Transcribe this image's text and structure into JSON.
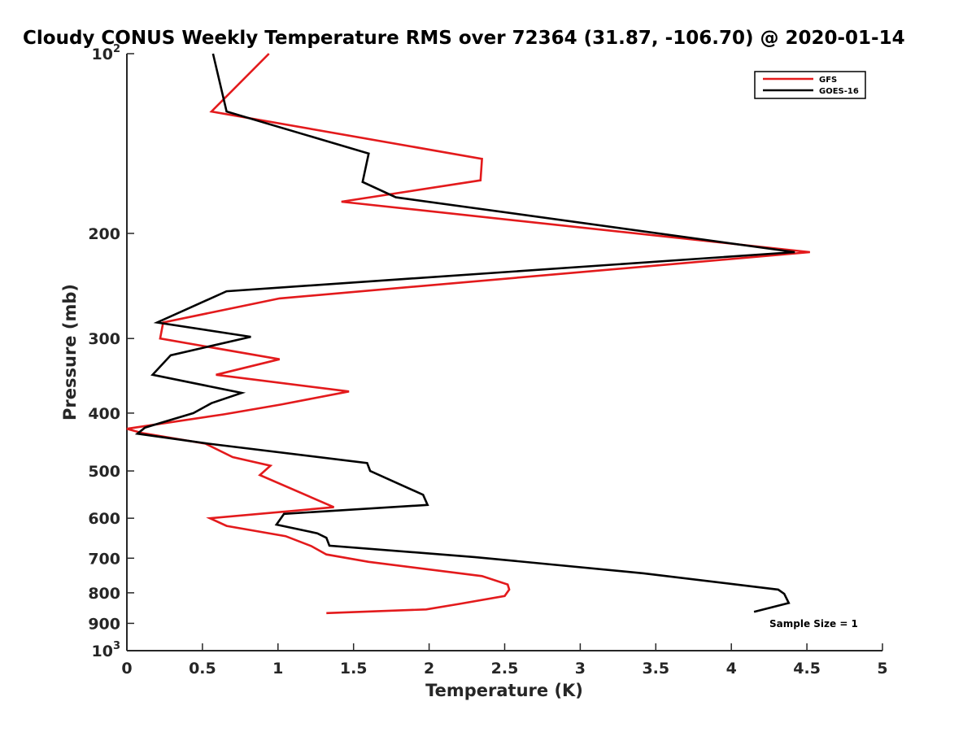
{
  "chart_data": {
    "type": "line",
    "title": "Cloudy CONUS Weekly Temperature RMS over 72364 (31.87, -106.70) @ 2020-01-14",
    "xlabel": "Temperature (K)",
    "ylabel": "Pressure (mb)",
    "xlim": [
      0,
      5
    ],
    "ylim": [
      100,
      1000
    ],
    "y_scale": "log",
    "y_reversed": true,
    "x_ticks": [
      0,
      0.5,
      1,
      1.5,
      2,
      2.5,
      3,
      3.5,
      4,
      4.5,
      5
    ],
    "x_tick_labels": [
      "0",
      "0.5",
      "1",
      "1.5",
      "2",
      "2.5",
      "3",
      "3.5",
      "4",
      "4.5",
      "5"
    ],
    "y_ticks": [
      {
        "value": 100,
        "base": "10",
        "exp": "2"
      },
      {
        "value": 200,
        "label": "200"
      },
      {
        "value": 300,
        "label": "300"
      },
      {
        "value": 400,
        "label": "400"
      },
      {
        "value": 500,
        "label": "500"
      },
      {
        "value": 600,
        "label": "600"
      },
      {
        "value": 700,
        "label": "700"
      },
      {
        "value": 800,
        "label": "800"
      },
      {
        "value": 900,
        "label": "900"
      },
      {
        "value": 1000,
        "base": "10",
        "exp": "3"
      }
    ],
    "grid": false,
    "legend_position": "top-right",
    "annotation": "Sample Size = 1",
    "series": [
      {
        "name": "GFS",
        "color": "#e31a1c",
        "x": [
          0.94,
          0.56,
          2.35,
          2.34,
          1.42,
          4.52,
          1.01,
          0.24,
          0.22,
          1.01,
          0.59,
          1.47,
          1.02,
          0.64,
          0,
          0.1,
          0.52,
          0.7,
          0.95,
          0.88,
          1.37,
          0.55,
          0.66,
          1.05,
          1.22,
          1.32,
          1.6,
          2.35,
          2.52,
          2.53,
          2.5,
          2.2,
          1.98,
          1.32
        ],
        "y": [
          100,
          125,
          150,
          163,
          177,
          215,
          257,
          282,
          300,
          325,
          345,
          368,
          387,
          402,
          425,
          432,
          450,
          474,
          490,
          508,
          575,
          600,
          618,
          643,
          668,
          690,
          710,
          750,
          775,
          790,
          810,
          835,
          853,
          865
        ]
      },
      {
        "name": "GOES-16",
        "color": "#000000",
        "x": [
          0.57,
          0.66,
          1.6,
          1.56,
          1.78,
          4.42,
          0.66,
          0.2,
          0.82,
          0.29,
          0.17,
          0.76,
          0.56,
          0.44,
          0.12,
          0.07,
          0.54,
          1.59,
          1.61,
          1.81,
          1.96,
          1.99,
          1.04,
          0.99,
          1.26,
          1.32,
          1.34,
          2.3,
          3.42,
          4.31,
          4.35,
          4.38,
          4.15
        ],
        "y": [
          100,
          125,
          147,
          164,
          174,
          215,
          250,
          282,
          298,
          320,
          345,
          370,
          385,
          400,
          423,
          433,
          450,
          485,
          500,
          527,
          548,
          570,
          590,
          615,
          636,
          647,
          667,
          697,
          742,
          790,
          803,
          832,
          861
        ]
      }
    ]
  }
}
